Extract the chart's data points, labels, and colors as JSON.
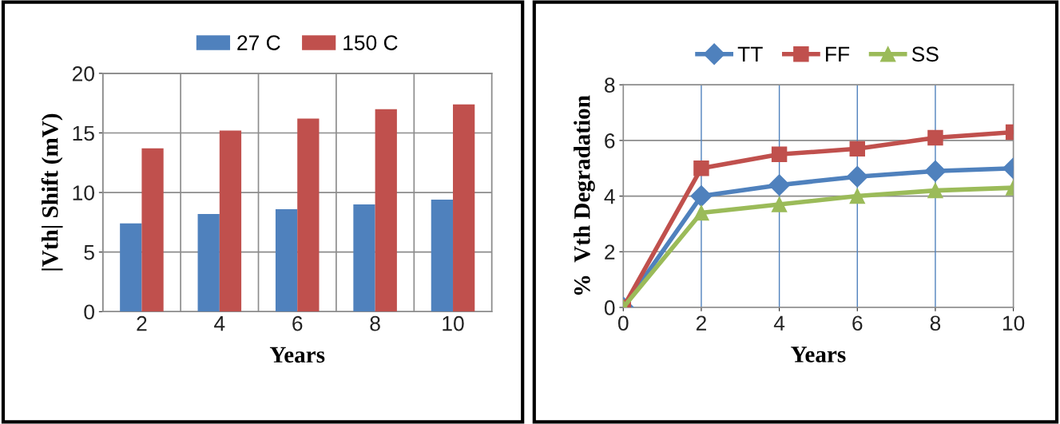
{
  "chart_data": [
    {
      "type": "bar",
      "xlabel": "Years",
      "ylabel": "|Vth| Shift (mV)",
      "categories": [
        "2",
        "4",
        "6",
        "8",
        "10"
      ],
      "series": [
        {
          "name": "27 C",
          "color": "#4f81bd",
          "values": [
            7.4,
            8.2,
            8.6,
            9.0,
            9.4
          ]
        },
        {
          "name": "150 C",
          "color": "#c0504d",
          "values": [
            13.7,
            15.2,
            16.2,
            17.0,
            17.4
          ]
        }
      ],
      "ylim": [
        0,
        20
      ],
      "yticks": [
        0,
        5,
        10,
        15,
        20
      ],
      "grid": true,
      "legend": "top"
    },
    {
      "type": "line",
      "xlabel": "Years",
      "ylabel": "%  Vth Degradation",
      "x": [
        0,
        2,
        4,
        6,
        8,
        10
      ],
      "series": [
        {
          "name": "TT",
          "color": "#4f81bd",
          "marker": "diamond",
          "values": [
            0,
            4.0,
            4.4,
            4.7,
            4.9,
            5.0
          ]
        },
        {
          "name": "FF",
          "color": "#c0504d",
          "marker": "square",
          "values": [
            0,
            5.0,
            5.5,
            5.7,
            6.1,
            6.3
          ]
        },
        {
          "name": "SS",
          "color": "#9bbb59",
          "marker": "triangle",
          "values": [
            0,
            3.4,
            3.7,
            4.0,
            4.2,
            4.3
          ]
        }
      ],
      "xlim": [
        0,
        10
      ],
      "xticks": [
        0,
        2,
        4,
        6,
        8,
        10
      ],
      "ylim": [
        0,
        8
      ],
      "yticks": [
        0,
        2,
        4,
        6,
        8
      ],
      "grid": true,
      "legend": "top"
    }
  ]
}
